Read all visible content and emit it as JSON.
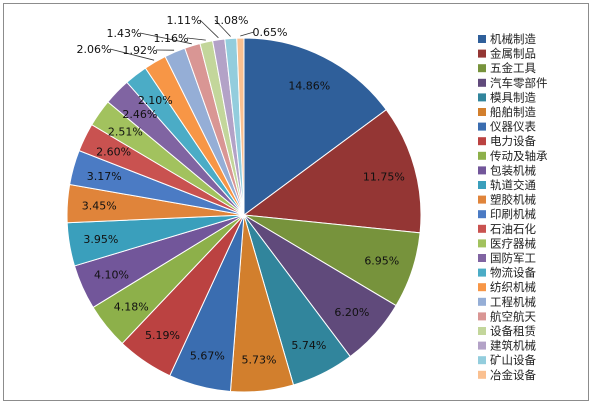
{
  "chart_data": {
    "type": "pie",
    "title": "",
    "slices": [
      {
        "label": "机械制造",
        "value": 14.86,
        "display": "14.86%",
        "color": "#2f5f9a"
      },
      {
        "label": "金属制品",
        "value": 11.75,
        "display": "11.75%",
        "color": "#943634"
      },
      {
        "label": "五金工具",
        "value": 6.95,
        "display": "6.95%",
        "color": "#77933c"
      },
      {
        "label": "汽车零部件",
        "value": 6.2,
        "display": "6.20%",
        "color": "#604a7b"
      },
      {
        "label": "模具制造",
        "value": 5.74,
        "display": "5.74%",
        "color": "#31859c"
      },
      {
        "label": "船舶制造",
        "value": 5.73,
        "display": "5.73%",
        "color": "#d27f2d"
      },
      {
        "label": "仪器仪表",
        "value": 5.67,
        "display": "5.67%",
        "color": "#3a6db0"
      },
      {
        "label": "电力设备",
        "value": 5.19,
        "display": "5.19%",
        "color": "#bb4241"
      },
      {
        "label": "传动及轴承",
        "value": 4.18,
        "display": "4.18%",
        "color": "#8db04a"
      },
      {
        "label": "包装机械",
        "value": 4.1,
        "display": "4.10%",
        "color": "#72569a"
      },
      {
        "label": "轨道交通",
        "value": 3.95,
        "display": "3.95%",
        "color": "#3a9fbc"
      },
      {
        "label": "塑胶机械",
        "value": 3.45,
        "display": "3.45%",
        "color": "#e0843a"
      },
      {
        "label": "印刷机械",
        "value": 3.17,
        "display": "3.17%",
        "color": "#4b7bc4"
      },
      {
        "label": "石油石化",
        "value": 2.6,
        "display": "2.60%",
        "color": "#c95250"
      },
      {
        "label": "医疗器械",
        "value": 2.51,
        "display": "2.51%",
        "color": "#a2c25e"
      },
      {
        "label": "国防军工",
        "value": 2.46,
        "display": "2.46%",
        "color": "#8064a2"
      },
      {
        "label": "物流设备",
        "value": 2.1,
        "display": "2.10%",
        "color": "#4bacc6"
      },
      {
        "label": "纺织机械",
        "value": 2.06,
        "display": "2.06%",
        "color": "#f79646"
      },
      {
        "label": "工程机械",
        "value": 1.92,
        "display": "1.92%",
        "color": "#95aed6"
      },
      {
        "label": "航空航天",
        "value": 1.43,
        "display": "1.43%",
        "color": "#d99694"
      },
      {
        "label": "设备租赁",
        "value": 1.16,
        "display": "1.16%",
        "color": "#c3d69b"
      },
      {
        "label": "建筑机械",
        "value": 1.11,
        "display": "1.11%",
        "color": "#b3a2c7"
      },
      {
        "label": "矿山设备",
        "value": 1.08,
        "display": "1.08%",
        "color": "#93cddd"
      },
      {
        "label": "冶金设备",
        "value": 0.65,
        "display": "0.65%",
        "color": "#fac090"
      }
    ],
    "legend_position": "right",
    "start_angle": "12 o'clock, clockwise"
  }
}
